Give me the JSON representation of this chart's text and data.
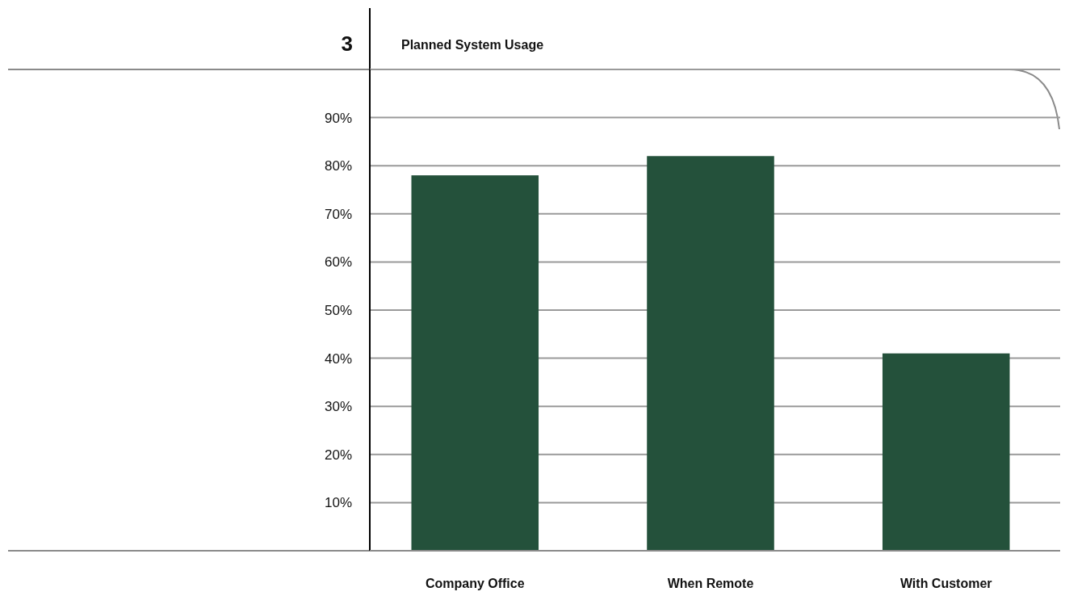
{
  "chart_data": {
    "type": "bar",
    "title": "Planned System Usage",
    "annotations": [
      "3"
    ],
    "categories": [
      "Company Office",
      "When Remote",
      "With Customer"
    ],
    "values": [
      78,
      82,
      41
    ],
    "color": "#24513b",
    "ylim": [
      0,
      100
    ],
    "yticks": [
      {
        "value": 0,
        "label": null
      },
      {
        "value": 10,
        "label": "10%"
      },
      {
        "value": 20,
        "label": "20%"
      },
      {
        "value": 30,
        "label": "30%"
      },
      {
        "value": 40,
        "label": "40%"
      },
      {
        "value": 50,
        "label": "50%"
      },
      {
        "value": 60,
        "label": "60%"
      },
      {
        "value": 70,
        "label": "70%"
      },
      {
        "value": 80,
        "label": "80%"
      },
      {
        "value": 90,
        "label": "90%"
      },
      {
        "value": 100,
        "label": null
      }
    ],
    "grid": "y"
  }
}
